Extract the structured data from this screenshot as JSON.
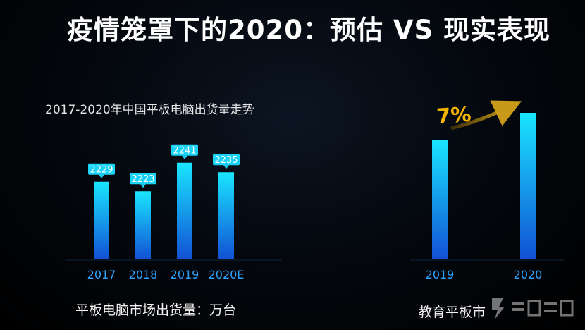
{
  "slide": {
    "title": "疫情笼罩下的2020：预估 VS 现实表现"
  },
  "colors": {
    "bar_top": "#19e6ff",
    "bar_bottom": "#1250d4",
    "label_fill": "#18d3f5",
    "growth_text": "#f5b400",
    "arrow": "#c99a1a",
    "text": "#ffffff",
    "axis_text": "#2ba3ff"
  },
  "chart_data": [
    {
      "type": "bar",
      "title": "2017-2020年中国平板电脑出货量走势",
      "categories": [
        "2017",
        "2018",
        "2019",
        "2020E"
      ],
      "values": [
        2229,
        2223,
        2241,
        2235
      ],
      "data_labels": [
        "2229",
        "2223",
        "2241",
        "2235"
      ],
      "caption": "平板电脑市场出货量：万台",
      "ylim": [
        2180,
        2260
      ],
      "grid": false,
      "legend": "none"
    },
    {
      "type": "bar",
      "title": "",
      "categories": [
        "2019",
        "2020"
      ],
      "values": [
        100,
        107
      ],
      "annotation": "7%",
      "caption": "教育平板市",
      "grid": false,
      "legend": "none"
    }
  ],
  "watermark": {
    "icon": "electronic-enthusiast-logo-icon"
  }
}
